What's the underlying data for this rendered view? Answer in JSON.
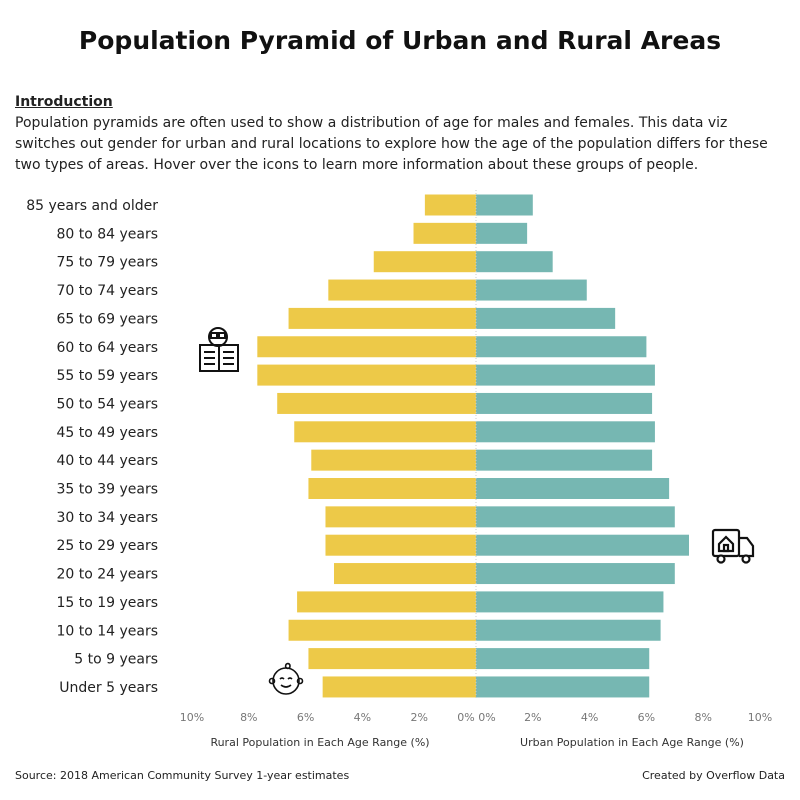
{
  "title": "Population Pyramid of Urban and Rural Areas",
  "intro": {
    "heading": "Introduction",
    "text": "Population pyramids are often used to show a distribution of age for males and females. This data viz switches out gender for urban and rural locations to explore how the age of the population differs for these two types of areas. Hover over the icons to learn more information about these groups of people."
  },
  "footer": {
    "source": "Source: 2018 American Community Survey 1-year estimates",
    "credit": "Created by Overflow Data"
  },
  "icons": [
    "newspaper-reader-icon",
    "moving-truck-icon",
    "baby-icon"
  ],
  "chart_data": {
    "type": "bar",
    "categories": [
      "85 years and older",
      "80 to 84 years",
      "75 to 79 years",
      "70 to 74 years",
      "65 to 69 years",
      "60 to 64 years",
      "55 to 59 years",
      "50 to 54 years",
      "45 to 49 years",
      "40 to 44 years",
      "35 to 39 years",
      "30 to 34 years",
      "25 to 29 years",
      "20 to 24 years",
      "15 to 19 years",
      "10 to 14 years",
      "5 to 9 years",
      "Under 5 years"
    ],
    "series": [
      {
        "name": "Rural Population in Each Age Range (%)",
        "color": "#EDC948",
        "values": [
          1.8,
          2.2,
          3.6,
          5.2,
          6.6,
          7.7,
          7.7,
          7.0,
          6.4,
          5.8,
          5.9,
          5.3,
          5.3,
          5.0,
          6.3,
          6.6,
          5.9,
          5.4
        ]
      },
      {
        "name": "Urban Population in Each Age Range (%)",
        "color": "#76B7B2",
        "values": [
          2.0,
          1.8,
          2.7,
          3.9,
          4.9,
          6.0,
          6.3,
          6.2,
          6.3,
          6.2,
          6.8,
          7.0,
          7.5,
          7.0,
          6.6,
          6.5,
          6.1,
          6.1
        ]
      }
    ],
    "xlim": [
      0,
      10
    ],
    "ticks": [
      "10%",
      "8%",
      "6%",
      "4%",
      "2%",
      "0%"
    ],
    "ticks_right": [
      "0%",
      "2%",
      "4%",
      "6%",
      "8%",
      "10%"
    ],
    "grid": false
  }
}
